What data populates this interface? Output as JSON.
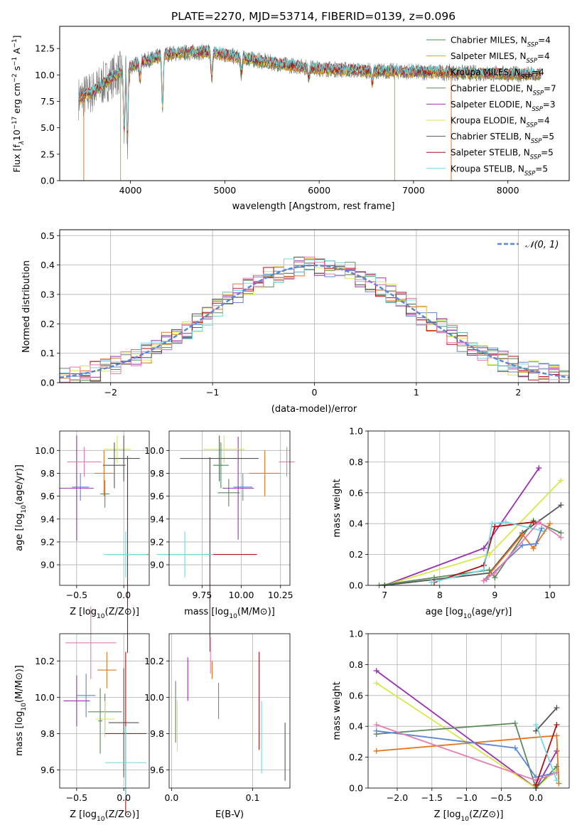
{
  "colors": {
    "Chabrier MILES": "#4a8a55",
    "Salpeter MILES": "#e0a020",
    "Kroupa MILES": "#e6731e",
    "Chabrier ELODIE": "#5a8a5a",
    "Salpeter ELODIE": "#9a30b0",
    "Kroupa ELODIE": "#d8e84a",
    "Chabrier STELIB": "#555555",
    "Salpeter STELIB": "#b01010",
    "Kroupa STELIB": "#70d8e0",
    "blue": "#5b87d6",
    "pink": "#e87ab0"
  },
  "chart_data": [
    {
      "id": "spectrum",
      "type": "line",
      "title": "PLATE=2270, MJD=53714, FIBERID=0139, z=0.096",
      "xlabel": "wavelength [Angstrom, rest frame]",
      "ylabel_parts": [
        "Flux [f",
        "λ",
        "10",
        "−17",
        " erg cm",
        "−2",
        " s",
        "−1",
        " A",
        "−1",
        "]"
      ],
      "xlim": [
        3250,
        8650
      ],
      "ylim": [
        0,
        14.6
      ],
      "xticks": [
        "4000",
        "5000",
        "6000",
        "7000",
        "8000"
      ],
      "yticks": [
        "0.0",
        "2.5",
        "5.0",
        "7.5",
        "10.0",
        "12.5"
      ],
      "legend_position": "upper right",
      "legend": [
        {
          "label": "Chabrier MILES, N",
          "sub": "SSP",
          "tail": "=4",
          "color": "Chabrier MILES"
        },
        {
          "label": "Salpeter MILES, N",
          "sub": "SSP",
          "tail": "=4",
          "color": "Salpeter MILES"
        },
        {
          "label": "Kroupa MILES, N",
          "sub": "SSP",
          "tail": "=4",
          "color": "Kroupa MILES"
        },
        {
          "label": "Chabrier ELODIE, N",
          "sub": "SSP",
          "tail": "=7",
          "color": "Chabrier ELODIE"
        },
        {
          "label": "Salpeter ELODIE, N",
          "sub": "SSP",
          "tail": "=3",
          "color": "Salpeter ELODIE"
        },
        {
          "label": "Kroupa ELODIE, N",
          "sub": "SSP",
          "tail": "=4",
          "color": "Kroupa ELODIE"
        },
        {
          "label": "Chabrier STELIB, N",
          "sub": "SSP",
          "tail": "=5",
          "color": "Chabrier STELIB"
        },
        {
          "label": "Salpeter STELIB, N",
          "sub": "SSP",
          "tail": "=5",
          "color": "Salpeter STELIB"
        },
        {
          "label": "Kroupa STELIB, N",
          "sub": "SSP",
          "tail": "=5",
          "color": "Kroupa STELIB"
        }
      ],
      "data_range_angstrom": [
        3450,
        8350
      ],
      "continuum_points": [
        [
          3450,
          7.8
        ],
        [
          3600,
          8.4
        ],
        [
          3800,
          9.8
        ],
        [
          3950,
          10.5
        ],
        [
          4100,
          11.2
        ],
        [
          4400,
          12.0
        ],
        [
          4800,
          12.2
        ],
        [
          5200,
          11.6
        ],
        [
          5600,
          11.0
        ],
        [
          6000,
          10.6
        ],
        [
          6500,
          10.4
        ],
        [
          7000,
          10.3
        ],
        [
          7500,
          10.2
        ],
        [
          8000,
          10.1
        ],
        [
          8350,
          10.0
        ]
      ],
      "absorption_features": [
        [
          3933,
          4.2
        ],
        [
          3968,
          3.5
        ],
        [
          4102,
          9.6
        ],
        [
          4340,
          6.5
        ],
        [
          4861,
          9.5
        ],
        [
          5175,
          9.9
        ],
        [
          5890,
          9.8
        ],
        [
          6563,
          9.2
        ]
      ]
    },
    {
      "id": "residuals",
      "type": "line",
      "xlabel": "(data-model)/error",
      "ylabel": "Normed distribution",
      "xlim": [
        -2.5,
        2.5
      ],
      "ylim": [
        0,
        0.52
      ],
      "xticks": [
        "−2",
        "−1",
        "0",
        "1",
        "2"
      ],
      "yticks": [
        "0.0",
        "0.1",
        "0.2",
        "0.3",
        "0.4",
        "0.5"
      ],
      "legend": {
        "label": "𝒩(0, 1)",
        "position": "upper right",
        "style": "dashed",
        "color": "blue"
      },
      "bin_width": 0.1
    },
    {
      "id": "age_vs_z",
      "type": "scatter",
      "xlabel_parts": [
        "Z [log",
        "10",
        "(Z/Z",
        "⊙",
        ")]"
      ],
      "ylabel_parts": [
        "age  [log",
        "10",
        "(age/yr)]"
      ],
      "xlim": [
        -0.68,
        0.27
      ],
      "ylim": [
        8.82,
        10.17
      ],
      "xticks": [
        "−0.5",
        "0.0"
      ],
      "xtick_values": [
        -0.5,
        0.0
      ],
      "yticks": [
        "9.0",
        "9.2",
        "9.4",
        "9.6",
        "9.8",
        "10.0"
      ],
      "ytick_values": [
        9.0,
        9.2,
        9.4,
        9.6,
        9.8,
        10.0
      ],
      "points": [
        {
          "color": "blue",
          "x": -0.46,
          "xerr": 0.09,
          "y": 9.68,
          "yerr": 0.12
        },
        {
          "color": "Kroupa MILES",
          "x": -0.21,
          "xerr": 0.1,
          "y": 9.8,
          "yerr": 0.2
        },
        {
          "color": "Chabrier ELODIE",
          "x": -0.2,
          "xerr": 0.05,
          "y": 9.62,
          "yerr": 0.12
        },
        {
          "color": "Salpeter ELODIE",
          "x": -0.5,
          "xerr": 0.18,
          "y": 9.67,
          "yerr": 0.46
        },
        {
          "color": "Kroupa ELODIE",
          "x": -0.07,
          "xerr": 0.14,
          "y": 10.01,
          "yerr": 0.12
        },
        {
          "color": "Chabrier STELIB",
          "x": -0.1,
          "xerr": 0.12,
          "y": 9.87,
          "yerr": 0.2
        },
        {
          "color": "Salpeter STELIB",
          "x": 0.04,
          "xerr": 0.22,
          "y": 9.09,
          "yerr": 0.86
        },
        {
          "color": "Kroupa STELIB",
          "x": 0.02,
          "xerr": 0.23,
          "y": 9.09,
          "yerr": 0.2
        },
        {
          "color": "pink",
          "x": -0.42,
          "xerr": 0.18,
          "y": 9.9,
          "yerr": 0.13
        },
        {
          "color": "Chabrier STELIB",
          "x": 0.0,
          "xerr": 0.17,
          "y": 9.93,
          "yerr": 0.2
        }
      ]
    },
    {
      "id": "age_vs_mass",
      "type": "scatter",
      "xlabel_parts": [
        "mass [log",
        "10",
        "(M/M",
        "⊙",
        ")]"
      ],
      "xlim": [
        9.54,
        10.31
      ],
      "ylim": [
        8.82,
        10.17
      ],
      "xticks": [
        "9.75",
        "10.00",
        "10.25"
      ],
      "xtick_values": [
        9.75,
        10.0,
        10.25
      ],
      "yticks": [
        "9.0",
        "9.2",
        "9.4",
        "9.6",
        "9.8",
        "10.0"
      ],
      "ytick_values": [
        9.0,
        9.2,
        9.4,
        9.6,
        9.8,
        10.0
      ],
      "points": [
        {
          "color": "blue",
          "x": 10.01,
          "xerr": 0.06,
          "y": 9.68,
          "yerr": 0.12
        },
        {
          "color": "Kroupa MILES",
          "x": 10.15,
          "xerr": 0.1,
          "y": 9.8,
          "yerr": 0.2
        },
        {
          "color": "Chabrier ELODIE",
          "x": 9.92,
          "xerr": 0.07,
          "y": 9.63,
          "yerr": 0.12
        },
        {
          "color": "Salpeter ELODIE",
          "x": 9.98,
          "xerr": 0.1,
          "y": 9.67,
          "yerr": 0.45
        },
        {
          "color": "Kroupa ELODIE",
          "x": 9.89,
          "xerr": 0.13,
          "y": 10.01,
          "yerr": 0.12
        },
        {
          "color": "Chabrier STELIB",
          "x": 9.86,
          "xerr": 0.25,
          "y": 9.93,
          "yerr": 0.2
        },
        {
          "color": "Salpeter STELIB",
          "x": 9.8,
          "xerr": 0.3,
          "y": 9.09,
          "yerr": 0.85
        },
        {
          "color": "Kroupa STELIB",
          "x": 9.64,
          "xerr": 0.18,
          "y": 9.09,
          "yerr": 0.2
        },
        {
          "color": "pink",
          "x": 10.29,
          "xerr": 0.05,
          "y": 9.9,
          "yerr": 0.13
        },
        {
          "color": "Chabrier MILES",
          "x": 9.87,
          "xerr": 0.05,
          "y": 9.87,
          "yerr": 0.2
        }
      ]
    },
    {
      "id": "mass_weight_vs_age",
      "type": "line",
      "xlabel_parts": [
        "age  [log",
        "10",
        "(age/yr)]"
      ],
      "ylabel": "mass weight",
      "xlim": [
        6.7,
        10.35
      ],
      "ylim": [
        0,
        1.0
      ],
      "xticks": [
        "7",
        "8",
        "9",
        "10"
      ],
      "xtick_values": [
        7,
        8,
        9,
        10
      ],
      "yticks": [
        "0.0",
        "0.2",
        "0.4",
        "0.6",
        "0.8",
        "1.0"
      ],
      "ytick_values": [
        0,
        0.2,
        0.4,
        0.6,
        0.8,
        1.0
      ],
      "series": [
        {
          "color": "Salpeter ELODIE",
          "x": [
            7.0,
            8.8,
            9.8
          ],
          "y": [
            0.0,
            0.24,
            0.76
          ]
        },
        {
          "color": "Kroupa ELODIE",
          "x": [
            7.0,
            8.9,
            10.2
          ],
          "y": [
            0.0,
            0.2,
            0.68
          ]
        },
        {
          "color": "Chabrier STELIB",
          "x": [
            7.0,
            8.9,
            9.5,
            10.2
          ],
          "y": [
            0.0,
            0.08,
            0.34,
            0.52
          ]
        },
        {
          "color": "Chabrier ELODIE",
          "x": [
            6.9,
            7.9,
            8.9,
            9.0,
            9.7,
            10.2
          ],
          "y": [
            0.0,
            0.05,
            0.1,
            0.05,
            0.42,
            0.34
          ]
        },
        {
          "color": "Salpeter STELIB",
          "x": [
            7.9,
            8.8,
            9.0,
            9.7
          ],
          "y": [
            0.02,
            0.13,
            0.38,
            0.41
          ]
        },
        {
          "color": "Kroupa STELIB",
          "x": [
            7.85,
            8.8,
            8.95,
            9.2,
            9.9
          ],
          "y": [
            0.02,
            0.1,
            0.4,
            0.41,
            0.35
          ]
        },
        {
          "color": "Kroupa MILES",
          "x": [
            8.8,
            9.5,
            9.7,
            10.0
          ],
          "y": [
            0.03,
            0.33,
            0.24,
            0.4
          ]
        },
        {
          "color": "blue",
          "x": [
            8.85,
            9.5,
            9.75,
            9.85
          ],
          "y": [
            0.04,
            0.26,
            0.27,
            0.37
          ]
        },
        {
          "color": "pink",
          "x": [
            8.8,
            9.0,
            9.8,
            10.2
          ],
          "y": [
            0.03,
            0.08,
            0.41,
            0.31
          ]
        }
      ]
    },
    {
      "id": "mass_vs_z",
      "type": "scatter",
      "xlabel_parts": [
        "Z [log",
        "10",
        "(Z/Z",
        "⊙",
        ")]"
      ],
      "ylabel_parts": [
        "mass [log",
        "10",
        "(M/M",
        "⊙",
        ")]"
      ],
      "xlim": [
        -0.68,
        0.27
      ],
      "ylim": [
        9.5,
        10.35
      ],
      "xticks": [
        "−0.5",
        "0.0"
      ],
      "xtick_values": [
        -0.5,
        0.0
      ],
      "yticks": [
        "9.6",
        "9.8",
        "10.0",
        "10.2"
      ],
      "ytick_values": [
        9.6,
        9.8,
        10.0,
        10.2
      ],
      "points": [
        {
          "color": "blue",
          "x": -0.4,
          "xerr": 0.1,
          "y": 10.01,
          "yerr": 0.12
        },
        {
          "color": "Kroupa MILES",
          "x": -0.18,
          "xerr": 0.1,
          "y": 10.15,
          "yerr": 0.1
        },
        {
          "color": "Chabrier ELODIE",
          "x": -0.2,
          "xerr": 0.18,
          "y": 9.92,
          "yerr": 0.1
        },
        {
          "color": "Salpeter ELODIE",
          "x": -0.5,
          "xerr": 0.14,
          "y": 9.98,
          "yerr": 0.14
        },
        {
          "color": "Kroupa ELODIE",
          "x": -0.2,
          "xerr": 0.1,
          "y": 9.88,
          "yerr": 0.1
        },
        {
          "color": "Chabrier STELIB",
          "x": 0.0,
          "xerr": 0.16,
          "y": 9.86,
          "yerr": 0.3
        },
        {
          "color": "Salpeter STELIB",
          "x": 0.02,
          "xerr": 0.22,
          "y": 9.8,
          "yerr": 0.45
        },
        {
          "color": "Kroupa STELIB",
          "x": 0.02,
          "xerr": 0.22,
          "y": 9.64,
          "yerr": 0.2
        },
        {
          "color": "pink",
          "x": -0.35,
          "xerr": 0.27,
          "y": 10.3,
          "yerr": 0.2
        },
        {
          "color": "Chabrier MILES",
          "x": -0.25,
          "xerr": 0.02,
          "y": 9.87,
          "yerr": 0.18
        }
      ]
    },
    {
      "id": "mass_vs_ebv",
      "type": "scatter",
      "xlabel": "E(B-V)",
      "xlim": [
        -0.003,
        0.146
      ],
      "ylim": [
        9.5,
        10.35
      ],
      "xticks": [
        "0.0",
        "0.1"
      ],
      "xtick_values": [
        0.0,
        0.1
      ],
      "yticks": [
        "9.6",
        "9.8",
        "10.0",
        "10.2"
      ],
      "ytick_values": [
        9.6,
        9.8,
        10.0,
        10.2
      ],
      "points": [
        {
          "color": "Chabrier ELODIE",
          "x": 0.005,
          "y": 9.92,
          "yerr": 0.17
        },
        {
          "color": "Kroupa ELODIE",
          "x": 0.007,
          "y": 9.84,
          "yerr": 0.14
        },
        {
          "color": "Salpeter ELODIE",
          "x": 0.02,
          "y": 10.1,
          "yerr": 0.12
        },
        {
          "color": "pink",
          "x": 0.048,
          "y": 10.23,
          "yerr": 0.1
        },
        {
          "color": "Kroupa MILES",
          "x": 0.05,
          "y": 10.15,
          "yerr": 0.05
        },
        {
          "color": "blue",
          "x": 0.058,
          "y": 9.98,
          "yerr": 0.1
        },
        {
          "color": "Salpeter STELIB",
          "x": 0.108,
          "y": 9.98,
          "yerr": 0.27
        },
        {
          "color": "Kroupa STELIB",
          "x": 0.111,
          "y": 9.78,
          "yerr": 0.2
        },
        {
          "color": "Chabrier STELIB",
          "x": 0.14,
          "y": 9.7,
          "yerr": 0.16
        }
      ]
    },
    {
      "id": "mass_weight_vs_z",
      "type": "line",
      "xlabel_parts": [
        "Z [log",
        "10",
        "(Z/Z",
        "⊙",
        ")]"
      ],
      "ylabel": "mass weight",
      "xlim": [
        -2.42,
        0.48
      ],
      "ylim": [
        0,
        1.0
      ],
      "xticks": [
        "−2.0",
        "−1.5",
        "−1.0",
        "−0.5",
        "0.0"
      ],
      "xtick_values": [
        -2.0,
        -1.5,
        -1.0,
        -0.5,
        0.0
      ],
      "yticks": [
        "0.0",
        "0.2",
        "0.4",
        "0.6",
        "0.8",
        "1.0"
      ],
      "ytick_values": [
        0,
        0.2,
        0.4,
        0.6,
        0.8,
        1.0
      ],
      "series": [
        {
          "color": "Salpeter ELODIE",
          "x": [
            -2.3,
            0.0,
            0.3
          ],
          "y": [
            0.76,
            0.0,
            0.24
          ]
        },
        {
          "color": "Kroupa ELODIE",
          "x": [
            -2.3,
            0.0,
            0.3
          ],
          "y": [
            0.68,
            0.0,
            0.12
          ]
        },
        {
          "color": "Chabrier ELODIE",
          "x": [
            -2.3,
            -0.3,
            0.0,
            0.3
          ],
          "y": [
            0.35,
            0.42,
            0.0,
            0.14
          ]
        },
        {
          "color": "Kroupa MILES",
          "x": [
            -2.3,
            0.3,
            0.33
          ],
          "y": [
            0.24,
            0.34,
            0.03
          ]
        },
        {
          "color": "blue",
          "x": [
            -2.3,
            -0.3,
            0.0,
            0.3
          ],
          "y": [
            0.37,
            0.26,
            0.07,
            0.1
          ]
        },
        {
          "color": "pink",
          "x": [
            -2.3,
            0.0,
            0.3
          ],
          "y": [
            0.41,
            0.05,
            0.1
          ]
        },
        {
          "color": "Chabrier STELIB",
          "x": [
            0.0,
            0.3
          ],
          "y": [
            0.37,
            0.52
          ]
        },
        {
          "color": "Salpeter STELIB",
          "x": [
            0.0,
            0.3
          ],
          "y": [
            0.02,
            0.41
          ]
        },
        {
          "color": "Kroupa STELIB",
          "x": [
            0.0,
            0.3
          ],
          "y": [
            0.41,
            0.05
          ]
        }
      ]
    }
  ]
}
